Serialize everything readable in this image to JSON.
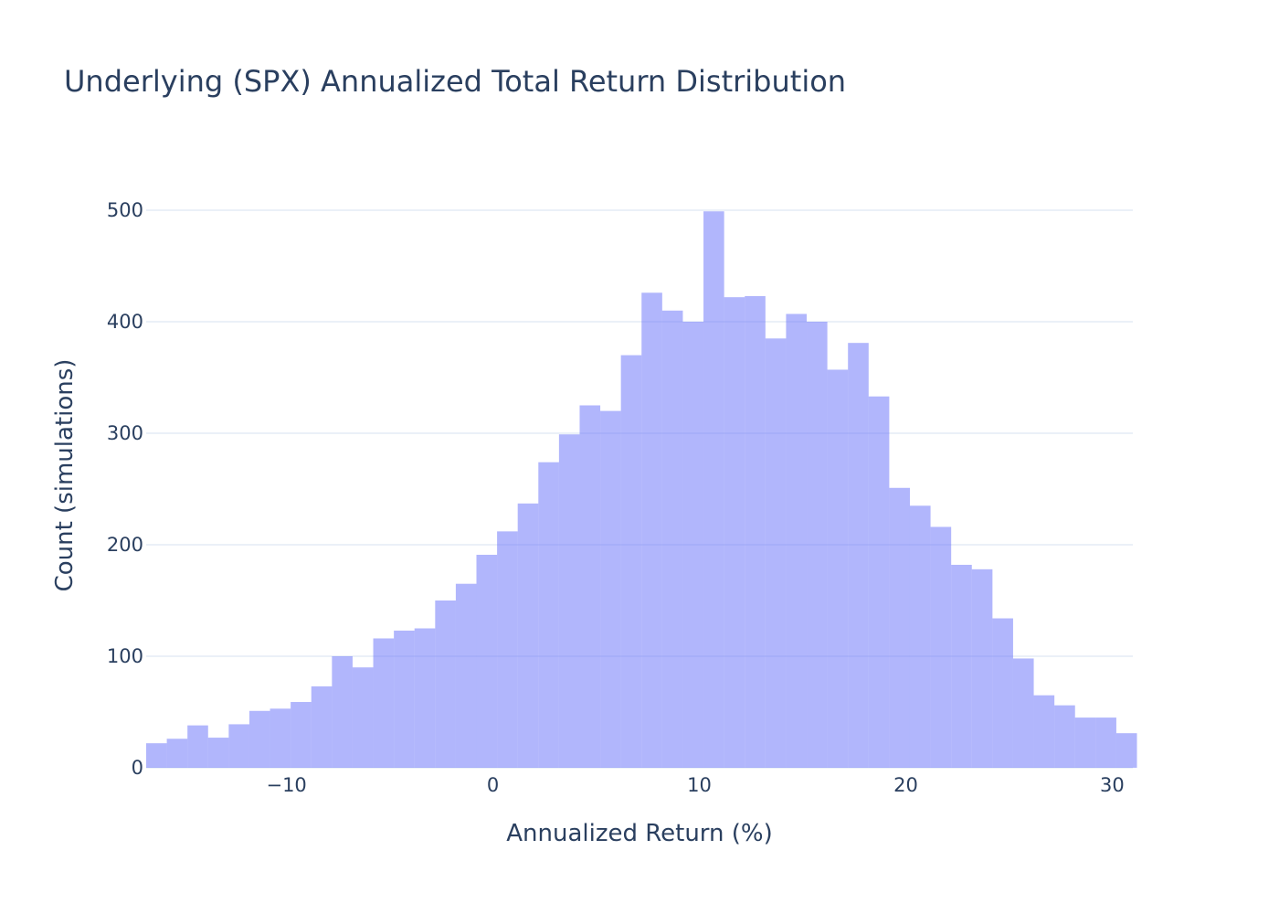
{
  "chart_data": {
    "type": "bar",
    "title": "Underlying (SPX) Annualized Total Return Distribution",
    "xlabel": "Annualized Return (%)",
    "ylabel": "Count (simulations)",
    "xlim": [
      -16.8,
      31.0
    ],
    "ylim": [
      0,
      500
    ],
    "bin_width": 1.0,
    "bin_start": -16.8,
    "x_ticks": [
      -10,
      0,
      10,
      20,
      30
    ],
    "x_tick_labels": [
      "−10",
      "0",
      "10",
      "20",
      "30"
    ],
    "y_ticks": [
      0,
      100,
      200,
      300,
      400,
      500
    ],
    "y_tick_labels": [
      "0",
      "100",
      "200",
      "300",
      "400",
      "500"
    ],
    "grid": true,
    "bar_color": "#636efa",
    "bar_opacity": 0.5,
    "values": [
      22,
      26,
      38,
      27,
      39,
      51,
      53,
      59,
      73,
      100,
      90,
      116,
      123,
      125,
      150,
      165,
      191,
      212,
      237,
      274,
      299,
      325,
      320,
      370,
      426,
      410,
      400,
      499,
      422,
      423,
      385,
      407,
      400,
      357,
      381,
      333,
      251,
      235,
      216,
      182,
      178,
      134,
      98,
      65,
      56,
      45,
      45,
      31
    ]
  }
}
